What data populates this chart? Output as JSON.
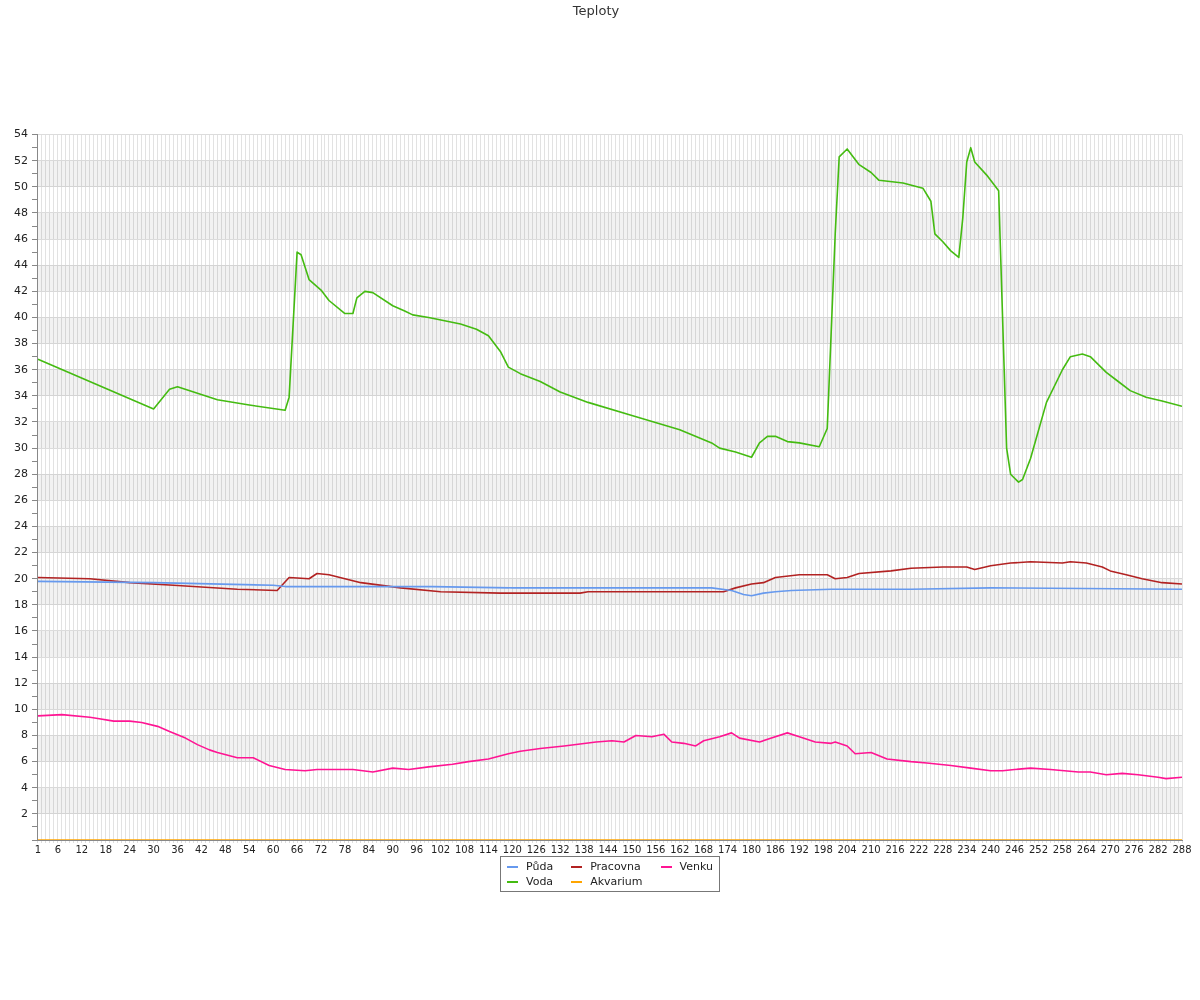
{
  "chart_data": {
    "type": "line",
    "title": "Teploty",
    "xlim": [
      1,
      288
    ],
    "xticks": [
      1,
      {
        "value": 2,
        "label": null
      },
      {
        "value": 3,
        "label": null
      },
      {
        "value": 4,
        "label": null
      },
      {
        "value": 5,
        "label": null
      },
      6,
      {
        "value": 7,
        "label": null
      },
      {
        "value": 8,
        "label": null
      },
      {
        "value": 9,
        "label": null
      },
      {
        "value": 10,
        "label": null
      },
      {
        "value": 11,
        "label": null
      },
      12,
      {
        "value": 13,
        "label": null
      },
      {
        "value": 14,
        "label": null
      },
      {
        "value": 15,
        "label": null
      },
      {
        "value": 16,
        "label": null
      },
      {
        "value": 17,
        "label": null
      },
      18,
      {
        "value": 19,
        "label": null
      },
      {
        "value": 20,
        "label": null
      },
      {
        "value": 21,
        "label": null
      },
      {
        "value": 22,
        "label": null
      },
      {
        "value": 23,
        "label": null
      },
      24,
      {
        "value": 25,
        "label": null
      },
      {
        "value": 26,
        "label": null
      },
      {
        "value": 27,
        "label": null
      },
      {
        "value": 28,
        "label": null
      },
      {
        "value": 29,
        "label": null
      },
      30,
      {
        "value": 31,
        "label": null
      },
      {
        "value": 32,
        "label": null
      },
      {
        "value": 33,
        "label": null
      },
      {
        "value": 34,
        "label": null
      },
      {
        "value": 35,
        "label": null
      },
      36,
      {
        "value": 37,
        "label": null
      },
      {
        "value": 38,
        "label": null
      },
      {
        "value": 39,
        "label": null
      },
      {
        "value": 40,
        "label": null
      },
      {
        "value": 41,
        "label": null
      },
      42,
      {
        "value": 43,
        "label": null
      },
      {
        "value": 44,
        "label": null
      },
      {
        "value": 45,
        "label": null
      },
      {
        "value": 46,
        "label": null
      },
      {
        "value": 47,
        "label": null
      },
      48,
      {
        "value": 49,
        "label": null
      },
      {
        "value": 50,
        "label": null
      },
      {
        "value": 51,
        "label": null
      },
      {
        "value": 52,
        "label": null
      },
      {
        "value": 53,
        "label": null
      },
      54,
      {
        "value": 55,
        "label": null
      },
      {
        "value": 56,
        "label": null
      },
      {
        "value": 57,
        "label": null
      },
      {
        "value": 58,
        "label": null
      },
      {
        "value": 59,
        "label": null
      },
      60,
      {
        "value": 61,
        "label": null
      },
      {
        "value": 62,
        "label": null
      },
      {
        "value": 63,
        "label": null
      },
      {
        "value": 64,
        "label": null
      },
      {
        "value": 65,
        "label": null
      },
      66,
      {
        "value": 67,
        "label": null
      },
      {
        "value": 68,
        "label": null
      },
      {
        "value": 69,
        "label": null
      },
      {
        "value": 70,
        "label": null
      },
      {
        "value": 71,
        "label": null
      },
      72,
      {
        "value": 73,
        "label": null
      },
      {
        "value": 74,
        "label": null
      },
      {
        "value": 75,
        "label": null
      },
      {
        "value": 76,
        "label": null
      },
      {
        "value": 77,
        "label": null
      },
      78,
      {
        "value": 79,
        "label": null
      },
      {
        "value": 80,
        "label": null
      },
      {
        "value": 81,
        "label": null
      },
      {
        "value": 82,
        "label": null
      },
      {
        "value": 83,
        "label": null
      },
      84,
      {
        "value": 85,
        "label": null
      },
      {
        "value": 86,
        "label": null
      },
      {
        "value": 87,
        "label": null
      },
      {
        "value": 88,
        "label": null
      },
      {
        "value": 89,
        "label": null
      },
      90,
      {
        "value": 91,
        "label": null
      },
      {
        "value": 92,
        "label": null
      },
      {
        "value": 93,
        "label": null
      },
      {
        "value": 94,
        "label": null
      },
      {
        "value": 95,
        "label": null
      },
      96,
      {
        "value": 97,
        "label": null
      },
      {
        "value": 98,
        "label": null
      },
      {
        "value": 99,
        "label": null
      },
      {
        "value": 100,
        "label": null
      },
      {
        "value": 101,
        "label": null
      },
      102,
      {
        "value": 103,
        "label": null
      },
      {
        "value": 104,
        "label": null
      },
      {
        "value": 105,
        "label": null
      },
      {
        "value": 106,
        "label": null
      },
      {
        "value": 107,
        "label": null
      },
      108,
      {
        "value": 109,
        "label": null
      },
      {
        "value": 110,
        "label": null
      },
      {
        "value": 111,
        "label": null
      },
      {
        "value": 112,
        "label": null
      },
      {
        "value": 113,
        "label": null
      },
      114,
      {
        "value": 115,
        "label": null
      },
      {
        "value": 116,
        "label": null
      },
      {
        "value": 117,
        "label": null
      },
      {
        "value": 118,
        "label": null
      },
      {
        "value": 119,
        "label": null
      },
      120,
      {
        "value": 121,
        "label": null
      },
      {
        "value": 122,
        "label": null
      },
      {
        "value": 123,
        "label": null
      },
      {
        "value": 124,
        "label": null
      },
      {
        "value": 125,
        "label": null
      },
      126,
      {
        "value": 127,
        "label": null
      },
      {
        "value": 128,
        "label": null
      },
      {
        "value": 129,
        "label": null
      },
      {
        "value": 130,
        "label": null
      },
      {
        "value": 131,
        "label": null
      },
      132,
      {
        "value": 133,
        "label": null
      },
      {
        "value": 134,
        "label": null
      },
      {
        "value": 135,
        "label": null
      },
      {
        "value": 136,
        "label": null
      },
      {
        "value": 137,
        "label": null
      },
      138,
      {
        "value": 139,
        "label": null
      },
      {
        "value": 140,
        "label": null
      },
      {
        "value": 141,
        "label": null
      },
      {
        "value": 142,
        "label": null
      },
      {
        "value": 143,
        "label": null
      },
      144,
      {
        "value": 145,
        "label": null
      },
      {
        "value": 146,
        "label": null
      },
      {
        "value": 147,
        "label": null
      },
      {
        "value": 148,
        "label": null
      },
      {
        "value": 149,
        "label": null
      },
      150,
      {
        "value": 151,
        "label": null
      },
      {
        "value": 152,
        "label": null
      },
      {
        "value": 153,
        "label": null
      },
      {
        "value": 154,
        "label": null
      },
      {
        "value": 155,
        "label": null
      },
      156,
      {
        "value": 157,
        "label": null
      },
      {
        "value": 158,
        "label": null
      },
      {
        "value": 159,
        "label": null
      },
      {
        "value": 160,
        "label": null
      },
      {
        "value": 161,
        "label": null
      },
      162,
      {
        "value": 163,
        "label": null
      },
      {
        "value": 164,
        "label": null
      },
      {
        "value": 165,
        "label": null
      },
      {
        "value": 166,
        "label": null
      },
      {
        "value": 167,
        "label": null
      },
      168,
      {
        "value": 169,
        "label": null
      },
      {
        "value": 170,
        "label": null
      },
      {
        "value": 171,
        "label": null
      },
      {
        "value": 172,
        "label": null
      },
      {
        "value": 173,
        "label": null
      },
      174,
      {
        "value": 175,
        "label": null
      },
      {
        "value": 176,
        "label": null
      },
      {
        "value": 177,
        "label": null
      },
      {
        "value": 178,
        "label": null
      },
      {
        "value": 179,
        "label": null
      },
      180,
      {
        "value": 181,
        "label": null
      },
      {
        "value": 182,
        "label": null
      },
      {
        "value": 183,
        "label": null
      },
      {
        "value": 184,
        "label": null
      },
      {
        "value": 185,
        "label": null
      },
      186,
      {
        "value": 187,
        "label": null
      },
      {
        "value": 188,
        "label": null
      },
      {
        "value": 189,
        "label": null
      },
      {
        "value": 190,
        "label": null
      },
      {
        "value": 191,
        "label": null
      },
      192,
      {
        "value": 193,
        "label": null
      },
      {
        "value": 194,
        "label": null
      },
      {
        "value": 195,
        "label": null
      },
      {
        "value": 196,
        "label": null
      },
      {
        "value": 197,
        "label": null
      },
      198,
      {
        "value": 199,
        "label": null
      },
      {
        "value": 200,
        "label": null
      },
      {
        "value": 201,
        "label": null
      },
      {
        "value": 202,
        "label": null
      },
      {
        "value": 203,
        "label": null
      },
      204,
      {
        "value": 205,
        "label": null
      },
      {
        "value": 206,
        "label": null
      },
      {
        "value": 207,
        "label": null
      },
      {
        "value": 208,
        "label": null
      },
      {
        "value": 209,
        "label": null
      },
      210,
      {
        "value": 211,
        "label": null
      },
      {
        "value": 212,
        "label": null
      },
      {
        "value": 213,
        "label": null
      },
      {
        "value": 214,
        "label": null
      },
      {
        "value": 215,
        "label": null
      },
      216,
      {
        "value": 217,
        "label": null
      },
      {
        "value": 218,
        "label": null
      },
      {
        "value": 219,
        "label": null
      },
      {
        "value": 220,
        "label": null
      },
      {
        "value": 221,
        "label": null
      },
      222,
      {
        "value": 223,
        "label": null
      },
      {
        "value": 224,
        "label": null
      },
      {
        "value": 225,
        "label": null
      },
      {
        "value": 226,
        "label": null
      },
      {
        "value": 227,
        "label": null
      },
      228,
      {
        "value": 229,
        "label": null
      },
      {
        "value": 230,
        "label": null
      },
      {
        "value": 231,
        "label": null
      },
      {
        "value": 232,
        "label": null
      },
      {
        "value": 233,
        "label": null
      },
      234,
      {
        "value": 235,
        "label": null
      },
      {
        "value": 236,
        "label": null
      },
      {
        "value": 237,
        "label": null
      },
      {
        "value": 238,
        "label": null
      },
      {
        "value": 239,
        "label": null
      },
      240,
      {
        "value": 241,
        "label": null
      },
      {
        "value": 242,
        "label": null
      },
      {
        "value": 243,
        "label": null
      },
      {
        "value": 244,
        "label": null
      },
      {
        "value": 245,
        "label": null
      },
      246,
      {
        "value": 247,
        "label": null
      },
      {
        "value": 248,
        "label": null
      },
      {
        "value": 249,
        "label": null
      },
      {
        "value": 250,
        "label": null
      },
      {
        "value": 251,
        "label": null
      },
      252,
      {
        "value": 253,
        "label": null
      },
      {
        "value": 254,
        "label": null
      },
      {
        "value": 255,
        "label": null
      },
      {
        "value": 256,
        "label": null
      },
      {
        "value": 257,
        "label": null
      },
      258,
      {
        "value": 259,
        "label": null
      },
      {
        "value": 260,
        "label": null
      },
      {
        "value": 261,
        "label": null
      },
      {
        "value": 262,
        "label": null
      },
      {
        "value": 263,
        "label": null
      },
      264,
      {
        "value": 265,
        "label": null
      },
      {
        "value": 266,
        "label": null
      },
      {
        "value": 267,
        "label": null
      },
      {
        "value": 268,
        "label": null
      },
      {
        "value": 269,
        "label": null
      },
      270,
      {
        "value": 271,
        "label": null
      },
      {
        "value": 272,
        "label": null
      },
      {
        "value": 273,
        "label": null
      },
      {
        "value": 274,
        "label": null
      },
      {
        "value": 275,
        "label": null
      },
      276,
      {
        "value": 277,
        "label": null
      },
      {
        "value": 278,
        "label": null
      },
      {
        "value": 279,
        "label": null
      },
      {
        "value": 280,
        "label": null
      },
      {
        "value": 281,
        "label": null
      },
      282,
      {
        "value": 283,
        "label": null
      },
      {
        "value": 284,
        "label": null
      },
      {
        "value": 285,
        "label": null
      },
      {
        "value": 286,
        "label": null
      },
      {
        "value": 287,
        "label": null
      },
      288
    ],
    "ylim": [
      0,
      54
    ],
    "yticks": [
      {
        "value": 0,
        "label": null
      },
      {
        "value": 1,
        "label": null
      },
      2,
      {
        "value": 3,
        "label": null
      },
      4,
      {
        "value": 5,
        "label": null
      },
      6,
      {
        "value": 7,
        "label": null
      },
      8,
      {
        "value": 9,
        "label": null
      },
      10,
      {
        "value": 11,
        "label": null
      },
      12,
      {
        "value": 13,
        "label": null
      },
      14,
      {
        "value": 15,
        "label": null
      },
      16,
      {
        "value": 17,
        "label": null
      },
      18,
      {
        "value": 19,
        "label": null
      },
      20,
      {
        "value": 21,
        "label": null
      },
      22,
      {
        "value": 23,
        "label": null
      },
      24,
      {
        "value": 25,
        "label": null
      },
      26,
      {
        "value": 27,
        "label": null
      },
      28,
      {
        "value": 29,
        "label": null
      },
      30,
      {
        "value": 31,
        "label": null
      },
      32,
      {
        "value": 33,
        "label": null
      },
      34,
      {
        "value": 35,
        "label": null
      },
      36,
      {
        "value": 37,
        "label": null
      },
      38,
      {
        "value": 39,
        "label": null
      },
      40,
      {
        "value": 41,
        "label": null
      },
      42,
      {
        "value": 43,
        "label": null
      },
      44,
      {
        "value": 45,
        "label": null
      },
      46,
      {
        "value": 47,
        "label": null
      },
      48,
      {
        "value": 49,
        "label": null
      },
      50,
      {
        "value": 51,
        "label": null
      },
      52,
      {
        "value": 53,
        "label": null
      },
      54
    ],
    "grid": true,
    "legend": "bottom",
    "series": [
      {
        "name": "Půda",
        "color": "#6699ee",
        "x": [
          1,
          30,
          60,
          63,
          100,
          120,
          170,
          175,
          178,
          180,
          183,
          186,
          190,
          200,
          220,
          240,
          288
        ],
        "values": [
          19.8,
          19.7,
          19.5,
          19.4,
          19.4,
          19.3,
          19.3,
          19.1,
          18.8,
          18.7,
          18.9,
          19.0,
          19.1,
          19.2,
          19.2,
          19.3,
          19.2
        ]
      },
      {
        "name": "Voda",
        "color": "#44bb11",
        "x": [
          1,
          30,
          34,
          36,
          46,
          54,
          63,
          64,
          66,
          67,
          69,
          72,
          74,
          78,
          80,
          81,
          83,
          85,
          90,
          93,
          95,
          99,
          107,
          111,
          114,
          117,
          119,
          122,
          127,
          132,
          139,
          150,
          162,
          170,
          172,
          176,
          180,
          182,
          184,
          186,
          189,
          192,
          197,
          199,
          201,
          202,
          204,
          207,
          210,
          212,
          218,
          223,
          225,
          226,
          228,
          230,
          232,
          233,
          234,
          235,
          236,
          239,
          242,
          244,
          245,
          247,
          248,
          250,
          254,
          258,
          260,
          263,
          265,
          269,
          272,
          275,
          279,
          283,
          288
        ],
        "values": [
          36.8,
          33.0,
          34.5,
          34.7,
          33.7,
          33.3,
          32.9,
          33.9,
          45.0,
          44.8,
          42.9,
          42.1,
          41.3,
          40.3,
          40.3,
          41.5,
          42.0,
          41.9,
          40.9,
          40.5,
          40.2,
          40.0,
          39.5,
          39.1,
          38.6,
          37.4,
          36.2,
          35.7,
          35.1,
          34.3,
          33.5,
          32.5,
          31.4,
          30.4,
          30.0,
          29.7,
          29.3,
          30.4,
          30.9,
          30.9,
          30.5,
          30.4,
          30.1,
          31.5,
          46.4,
          52.3,
          52.9,
          51.7,
          51.1,
          50.5,
          50.3,
          49.9,
          48.9,
          46.4,
          45.8,
          45.1,
          44.6,
          47.6,
          51.9,
          53.0,
          51.9,
          50.9,
          49.7,
          30.0,
          28.0,
          27.4,
          27.6,
          29.2,
          33.5,
          36.0,
          37.0,
          37.2,
          37.0,
          35.8,
          35.1,
          34.4,
          33.9,
          33.6,
          33.2
        ]
      },
      {
        "name": "Pracovna",
        "color": "#b22222",
        "x": [
          1,
          14,
          24,
          35,
          51,
          61,
          64,
          69,
          71,
          74,
          78,
          82,
          92,
          102,
          117,
          137,
          139,
          173,
          176,
          180,
          183,
          186,
          192,
          199,
          201,
          204,
          207,
          215,
          220,
          228,
          234,
          236,
          240,
          245,
          250,
          258,
          260,
          264,
          268,
          270,
          274,
          278,
          283,
          288
        ],
        "values": [
          20.1,
          20.0,
          19.7,
          19.5,
          19.2,
          19.1,
          20.1,
          20.0,
          20.4,
          20.3,
          20.0,
          19.7,
          19.3,
          19.0,
          18.9,
          18.9,
          19.0,
          19.0,
          19.3,
          19.6,
          19.7,
          20.1,
          20.3,
          20.3,
          20.0,
          20.1,
          20.4,
          20.6,
          20.8,
          20.9,
          20.9,
          20.7,
          21.0,
          21.2,
          21.3,
          21.2,
          21.3,
          21.2,
          20.9,
          20.6,
          20.3,
          20.0,
          19.7,
          19.6
        ]
      },
      {
        "name": "Akvarium",
        "color": "#ffa500",
        "x": [
          1,
          288
        ],
        "values": [
          0,
          0
        ]
      },
      {
        "name": "Venku",
        "color": "#ff1493",
        "x": [
          1,
          7,
          14,
          16,
          20,
          24,
          27,
          31,
          34,
          38,
          41,
          44,
          46,
          51,
          55,
          59,
          63,
          68,
          71,
          80,
          85,
          90,
          94,
          99,
          105,
          109,
          114,
          119,
          122,
          127,
          133,
          141,
          145,
          148,
          151,
          155,
          158,
          160,
          163,
          166,
          168,
          172,
          175,
          177,
          182,
          185,
          189,
          192,
          196,
          200,
          201,
          204,
          206,
          210,
          214,
          220,
          224,
          230,
          235,
          240,
          243,
          246,
          250,
          255,
          262,
          265,
          269,
          273,
          277,
          282,
          284,
          288
        ],
        "values": [
          9.5,
          9.6,
          9.4,
          9.3,
          9.1,
          9.1,
          9.0,
          8.7,
          8.3,
          7.8,
          7.3,
          6.9,
          6.7,
          6.3,
          6.3,
          5.7,
          5.4,
          5.3,
          5.4,
          5.4,
          5.2,
          5.5,
          5.4,
          5.6,
          5.8,
          6.0,
          6.2,
          6.6,
          6.8,
          7.0,
          7.2,
          7.5,
          7.6,
          7.5,
          8.0,
          7.9,
          8.1,
          7.5,
          7.4,
          7.2,
          7.6,
          7.9,
          8.2,
          7.8,
          7.5,
          7.8,
          8.2,
          7.9,
          7.5,
          7.4,
          7.5,
          7.2,
          6.6,
          6.7,
          6.2,
          6.0,
          5.9,
          5.7,
          5.5,
          5.3,
          5.3,
          5.4,
          5.5,
          5.4,
          5.2,
          5.2,
          5.0,
          5.1,
          5.0,
          4.8,
          4.7,
          4.8
        ]
      }
    ]
  }
}
